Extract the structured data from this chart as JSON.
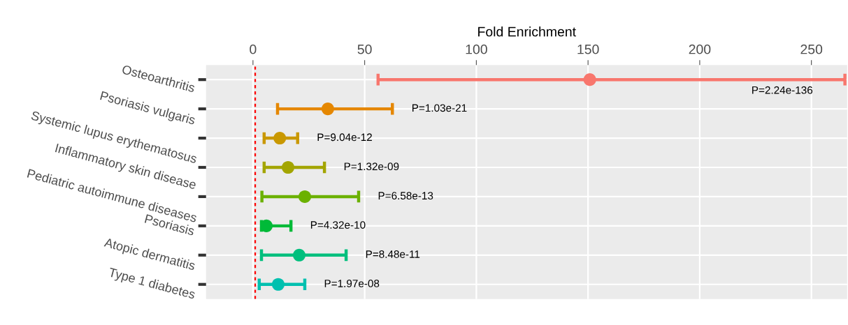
{
  "chart_data": {
    "type": "scatter",
    "xlabel": "Fold Enrichment",
    "categories": [
      "Osteoarthritis",
      "Psoriasis vulgaris",
      "Systemic lupus erythematosus",
      "Inflammatory skin disease",
      "Pediatric autoimmune diseases",
      "Psoriasis",
      "Atopic dermatitis",
      "Type 1 diabetes"
    ],
    "orientation": "horizontal",
    "values": [
      150.8,
      33.5,
      12,
      15.7,
      23.2,
      6,
      20.7,
      11.3
    ],
    "errors": [
      [
        56,
        265
      ],
      [
        11,
        62.4
      ],
      [
        5,
        20
      ],
      [
        5,
        32
      ],
      [
        4,
        47.3
      ],
      [
        3.8,
        17
      ],
      [
        3.8,
        41.7
      ],
      [
        2.8,
        23.2
      ]
    ],
    "colors": [
      "#F8766D",
      "#E58700",
      "#C99800",
      "#A3A500",
      "#6BB100",
      "#00BA38",
      "#00BF7D",
      "#00C0AF"
    ],
    "xlim": [
      -21,
      266
    ],
    "xticks": [
      0,
      50,
      100,
      150,
      200,
      250
    ],
    "ref_lines": [
      {
        "axis": "x",
        "value": 1,
        "label": null,
        "color": "#FF0000",
        "line_style": "dashed"
      }
    ],
    "annotations": [
      "P=2.24e-136",
      "P=1.03e-21",
      "P=9.04e-12",
      "P=1.32e-09",
      "P=6.58e-13",
      "P=4.32e-10",
      "P=8.48e-11",
      "P=1.97e-08"
    ],
    "grid": true,
    "marker": "circle"
  }
}
